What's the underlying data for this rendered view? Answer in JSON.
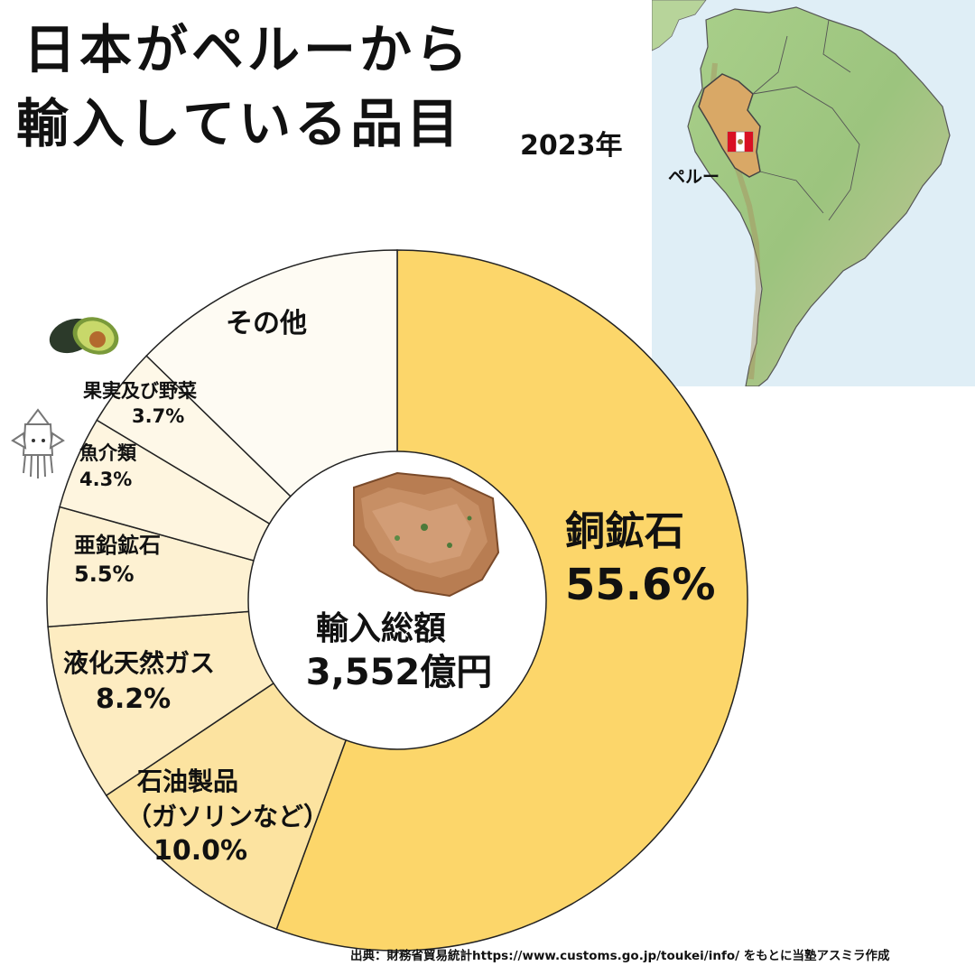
{
  "header": {
    "title_line1": "日本がペルーから",
    "title_line2": "輸入している品目",
    "year": "2023年"
  },
  "map": {
    "country_label": "ペルー",
    "icon": "peru-flag-icon"
  },
  "chart_data": {
    "type": "pie",
    "style": "donut",
    "center_label": "輸入総額",
    "center_value": "3,552億円",
    "slices": [
      {
        "name": "銅鉱石",
        "value": 55.6,
        "value_label": "55.6%",
        "color": "#FCD66A"
      },
      {
        "name": "石油製品（ガソリンなど）",
        "value": 10.0,
        "value_label": "10.0%",
        "color": "#FCE3A0"
      },
      {
        "name": "液化天然ガス",
        "value": 8.2,
        "value_label": "8.2%",
        "color": "#FDECC1"
      },
      {
        "name": "亜鉛鉱石",
        "value": 5.5,
        "value_label": "5.5%",
        "color": "#FDF1D2"
      },
      {
        "name": "魚介類",
        "value": 4.3,
        "value_label": "4.3%",
        "color": "#FEF5DF"
      },
      {
        "name": "果実及び野菜",
        "value": 3.7,
        "value_label": "3.7%",
        "color": "#FEF8E8"
      },
      {
        "name": "その他",
        "value": 12.7,
        "value_label": "",
        "color": "#FEFBF3"
      }
    ]
  },
  "labels": {
    "copper": {
      "name": "銅鉱石",
      "value": "55.6%"
    },
    "petroleum": {
      "name1": "石油製品",
      "name2": "（ガソリンなど）",
      "value": "10.0%"
    },
    "lng": {
      "name": "液化天然ガス",
      "value": "8.2%"
    },
    "zinc": {
      "name": "亜鉛鉱石",
      "value": "5.5%"
    },
    "seafood": {
      "name": "魚介類",
      "value": "4.3%"
    },
    "fruit": {
      "name": "果実及び野菜",
      "value": "3.7%"
    },
    "other": {
      "name": "その他"
    }
  },
  "source": "出典：財務省貿易統計https://www.customs.go.jp/toukei/info/ をもとに当塾アスミラ作成",
  "icons": [
    "avocado-icon",
    "squid-icon",
    "copper-ore-icon"
  ]
}
